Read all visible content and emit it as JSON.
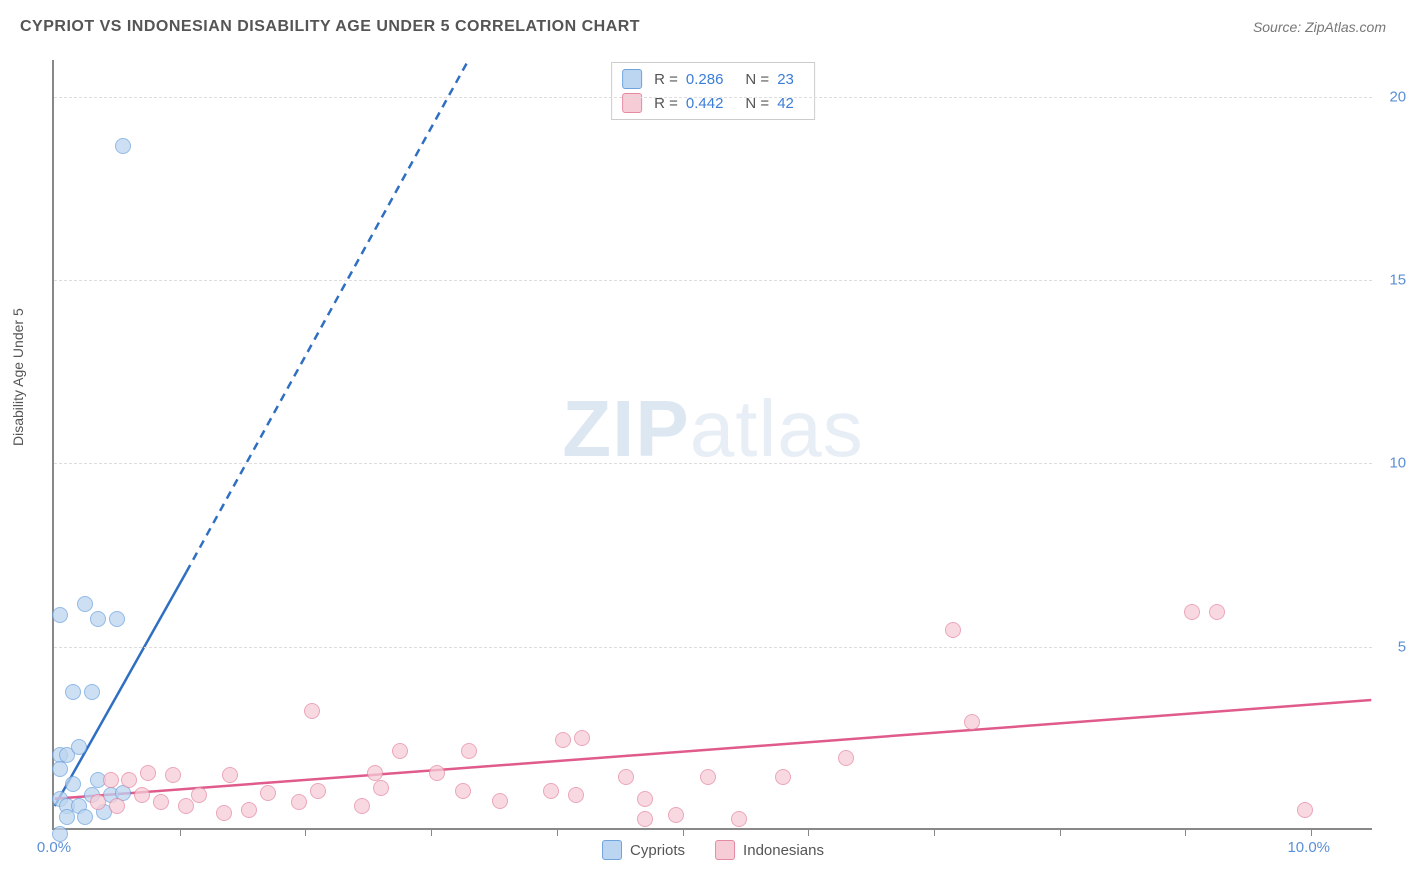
{
  "title": "CYPRIOT VS INDONESIAN DISABILITY AGE UNDER 5 CORRELATION CHART",
  "source": "Source: ZipAtlas.com",
  "y_axis_title": "Disability Age Under 5",
  "watermark": {
    "bold": "ZIP",
    "rest": "atlas"
  },
  "xlim": [
    0,
    10.5
  ],
  "ylim": [
    0,
    21.0
  ],
  "y_ticks": [
    5.0,
    10.0,
    15.0,
    20.0
  ],
  "y_tick_labels": [
    "5.0%",
    "10.0%",
    "15.0%",
    "20.0%"
  ],
  "x_ticks_minor": [
    1,
    2,
    3,
    4,
    5,
    6,
    7,
    8,
    9,
    10
  ],
  "x_origin_label": "0.0%",
  "x_end_label": "10.0%",
  "series": [
    {
      "name": "Cypriots",
      "color_fill": "#bcd5f0",
      "color_stroke": "#6ea3de",
      "line_color": "#2f6fc2",
      "R": "0.286",
      "N": "23",
      "trend_solid": {
        "x1": 0,
        "y1": 0.6,
        "x2": 1.05,
        "y2": 7.0
      },
      "trend_dash": {
        "x1": 1.05,
        "y1": 7.0,
        "x2": 3.3,
        "y2": 21.0
      },
      "points": [
        [
          0.55,
          18.6
        ],
        [
          0.25,
          6.1
        ],
        [
          0.05,
          5.8
        ],
        [
          0.35,
          5.7
        ],
        [
          0.5,
          5.7
        ],
        [
          0.15,
          3.7
        ],
        [
          0.3,
          3.7
        ],
        [
          0.05,
          2.0
        ],
        [
          0.1,
          2.0
        ],
        [
          0.2,
          2.2
        ],
        [
          0.05,
          1.6
        ],
        [
          0.15,
          1.2
        ],
        [
          0.35,
          1.3
        ],
        [
          0.3,
          0.9
        ],
        [
          0.45,
          0.9
        ],
        [
          0.55,
          0.95
        ],
        [
          0.05,
          0.8
        ],
        [
          0.1,
          0.6
        ],
        [
          0.2,
          0.6
        ],
        [
          0.1,
          0.3
        ],
        [
          0.25,
          0.3
        ],
        [
          0.4,
          0.45
        ],
        [
          0.05,
          -0.15
        ]
      ]
    },
    {
      "name": "Indonesians",
      "color_fill": "#f6cdd7",
      "color_stroke": "#e48aa3",
      "line_color": "#e05a8c",
      "R": "0.442",
      "N": "42",
      "trend_solid": {
        "x1": 0,
        "y1": 0.8,
        "x2": 10.5,
        "y2": 3.5
      },
      "points": [
        [
          9.05,
          5.9
        ],
        [
          9.25,
          5.9
        ],
        [
          7.15,
          5.4
        ],
        [
          7.3,
          2.9
        ],
        [
          9.95,
          0.5
        ],
        [
          6.3,
          1.9
        ],
        [
          5.8,
          1.4
        ],
        [
          5.2,
          1.4
        ],
        [
          5.45,
          0.25
        ],
        [
          4.95,
          0.35
        ],
        [
          4.7,
          0.8
        ],
        [
          4.7,
          0.25
        ],
        [
          4.55,
          1.4
        ],
        [
          4.15,
          0.9
        ],
        [
          4.2,
          2.45
        ],
        [
          4.05,
          2.4
        ],
        [
          3.95,
          1.0
        ],
        [
          3.55,
          0.75
        ],
        [
          3.3,
          2.1
        ],
        [
          3.25,
          1.0
        ],
        [
          3.05,
          1.5
        ],
        [
          2.75,
          2.1
        ],
        [
          2.6,
          1.1
        ],
        [
          2.45,
          0.6
        ],
        [
          2.55,
          1.5
        ],
        [
          2.05,
          3.2
        ],
        [
          2.1,
          1.0
        ],
        [
          1.95,
          0.7
        ],
        [
          1.7,
          0.95
        ],
        [
          1.55,
          0.5
        ],
        [
          1.4,
          1.45
        ],
        [
          1.35,
          0.4
        ],
        [
          1.15,
          0.9
        ],
        [
          1.05,
          0.6
        ],
        [
          0.95,
          1.45
        ],
        [
          0.85,
          0.7
        ],
        [
          0.75,
          1.5
        ],
        [
          0.7,
          0.9
        ],
        [
          0.6,
          1.3
        ],
        [
          0.5,
          0.6
        ],
        [
          0.45,
          1.3
        ],
        [
          0.35,
          0.7
        ]
      ]
    }
  ],
  "legend_bottom": [
    {
      "label": "Cypriots",
      "fill": "#bcd5f0",
      "stroke": "#6ea3de"
    },
    {
      "label": "Indonesians",
      "fill": "#f6cdd7",
      "stroke": "#e48aa3"
    }
  ]
}
